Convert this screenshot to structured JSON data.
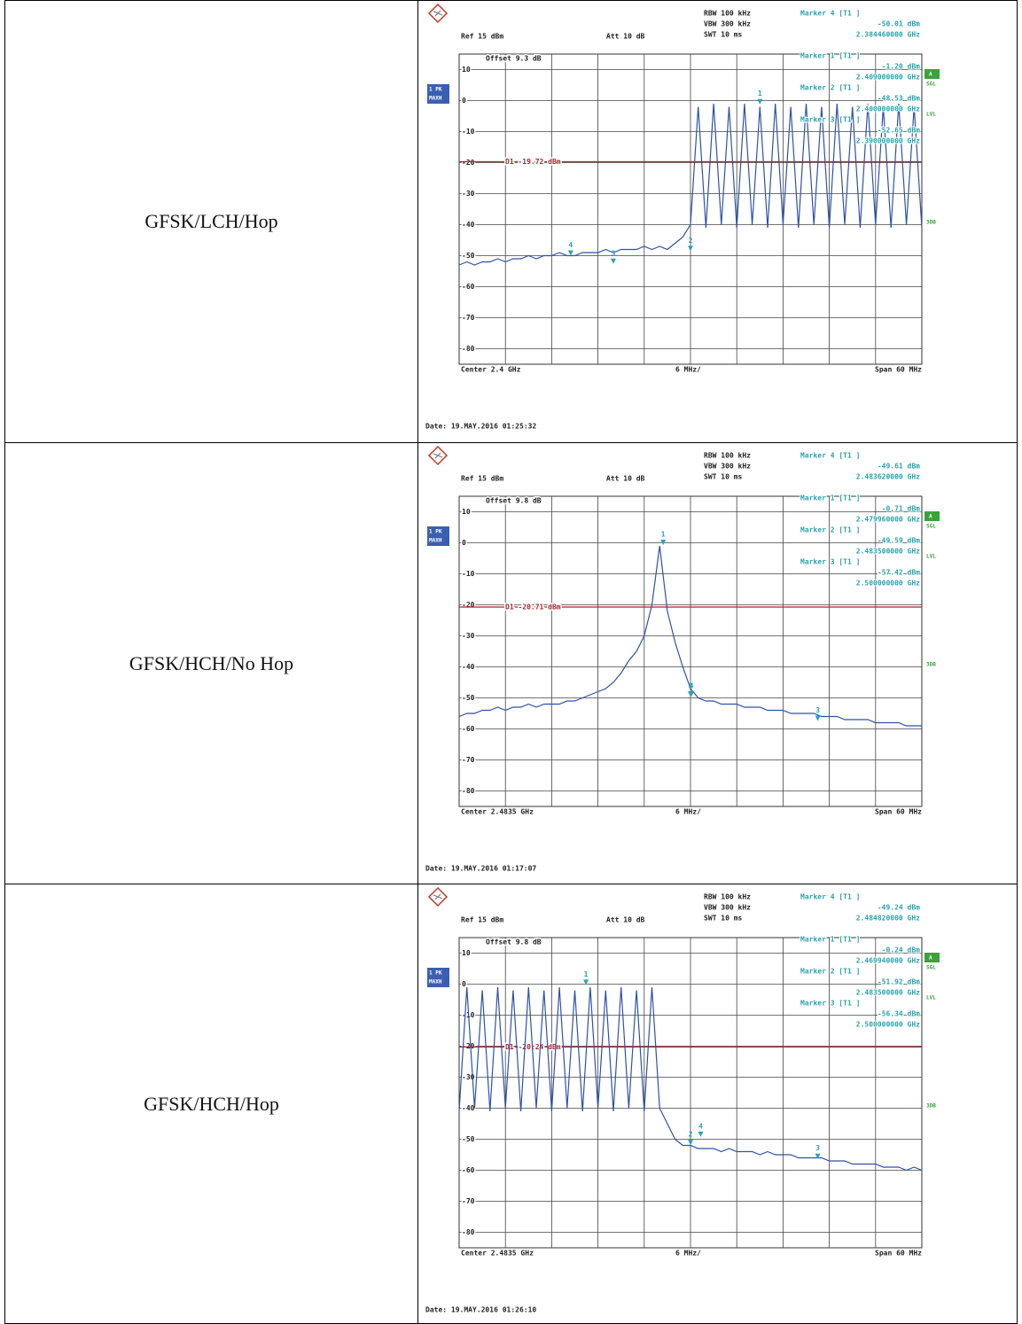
{
  "rows": [
    {
      "label": "GFSK/LCH/Hop",
      "plot": {
        "rbw": "RBW 100 kHz",
        "vbw": "VBW 300 kHz",
        "swt": "SWT 10 ms",
        "att": "Att 10 dB",
        "ref": {
          "value": 15,
          "label": "Ref 15 dBm"
        },
        "offset": "Offset 9.3 dB",
        "badge": [
          "1 PK",
          "MAXH"
        ],
        "side": [
          "A",
          "SGL",
          "LVL",
          "3DB"
        ],
        "markers": [
          {
            "id": "4",
            "label": "Marker 4 [T1 ]",
            "level": {
              "value": -50.01,
              "label": "-50.01 dBm"
            },
            "freq": {
              "value": 2.38446,
              "label": "2.384460000 GHz"
            }
          },
          {
            "id": "1",
            "label": "Marker 1 [T1 ]",
            "level": {
              "value": -1.2,
              "label": "-1.20 dBm"
            },
            "freq": {
              "value": 2.409,
              "label": "2.409000000 GHz"
            }
          },
          {
            "id": "2",
            "label": "Marker 2 [T1 ]",
            "level": {
              "value": -48.53,
              "label": "-48.53 dBm"
            },
            "freq": {
              "value": 2.4,
              "label": "2.400000000 GHz"
            }
          },
          {
            "id": "3",
            "label": "Marker 3 [T1 ]",
            "level": {
              "value": -52.65,
              "label": "-52.65 dBm"
            },
            "freq": {
              "value": 2.39,
              "label": "2.390000000 GHz"
            }
          }
        ],
        "d1": {
          "value": -19.72,
          "label": "D1 -19.72 dBm"
        },
        "yticks": [
          10,
          0,
          -10,
          -20,
          -30,
          -40,
          -50,
          -60,
          -70,
          -80
        ],
        "center": {
          "value": 2.4,
          "label": "Center 2.4 GHz"
        },
        "per_div": "6 MHz/",
        "span": {
          "value": 60,
          "label": "Span 60 MHz"
        },
        "trace": [
          -53,
          -52,
          -53,
          -52,
          -52,
          -51,
          -52,
          -51,
          -51,
          -50,
          -51,
          -50,
          -50,
          -49,
          -50,
          -50,
          -49,
          -49,
          -49,
          -48,
          -49,
          -48,
          -48,
          -48,
          -47,
          -48,
          -47,
          -48,
          -46,
          -44,
          -40,
          -2,
          -41,
          -1,
          -40,
          -2,
          -41,
          -1,
          -40,
          -2,
          -41,
          -1,
          -40,
          -2,
          -41,
          -1,
          -40,
          -2,
          -41,
          -1,
          -40,
          -2,
          -41,
          -1,
          -40,
          -2,
          -41,
          -1,
          -40,
          -2,
          -41
        ],
        "date": "Date: 19.MAY.2016 01:25:32"
      }
    },
    {
      "label": "GFSK/HCH/No Hop",
      "plot": {
        "rbw": "RBW 100 kHz",
        "vbw": "VBW 300 kHz",
        "swt": "SWT 10 ms",
        "att": "Att 10 dB",
        "ref": {
          "value": 15,
          "label": "Ref 15 dBm"
        },
        "offset": "Offset 9.8 dB",
        "badge": [
          "1 PK",
          "MAXH"
        ],
        "side": [
          "A",
          "SGL",
          "LVL",
          "3DB"
        ],
        "markers": [
          {
            "id": "4",
            "label": "Marker 4 [T1 ]",
            "level": {
              "value": -49.61,
              "label": "-49.61 dBm"
            },
            "freq": {
              "value": 2.48362,
              "label": "2.483620000 GHz"
            }
          },
          {
            "id": "1",
            "label": "Marker 1 [T1 ]",
            "level": {
              "value": -0.71,
              "label": "-0.71 dBm"
            },
            "freq": {
              "value": 2.47996,
              "label": "2.479960000 GHz"
            }
          },
          {
            "id": "2",
            "label": "Marker 2 [T1 ]",
            "level": {
              "value": -49.59,
              "label": "-49.59 dBm"
            },
            "freq": {
              "value": 2.4835,
              "label": "2.483500000 GHz"
            }
          },
          {
            "id": "3",
            "label": "Marker 3 [T1 ]",
            "level": {
              "value": -57.42,
              "label": "-57.42 dBm"
            },
            "freq": {
              "value": 2.5,
              "label": "2.500000000 GHz"
            }
          }
        ],
        "d1": {
          "value": -20.71,
          "label": "D1 -20.71 dBm"
        },
        "yticks": [
          10,
          0,
          -10,
          -20,
          -30,
          -40,
          -50,
          -60,
          -70,
          -80
        ],
        "center": {
          "value": 2.4835,
          "label": "Center 2.4835 GHz"
        },
        "per_div": "6 MHz/",
        "span": {
          "value": 60,
          "label": "Span 60 MHz"
        },
        "trace": [
          -56,
          -55,
          -55,
          -54,
          -54,
          -53,
          -54,
          -53,
          -53,
          -52,
          -53,
          -52,
          -52,
          -52,
          -51,
          -51,
          -50,
          -49,
          -48,
          -47,
          -45,
          -42,
          -38,
          -35,
          -30,
          -20,
          -1,
          -22,
          -32,
          -40,
          -47,
          -50,
          -51,
          -51,
          -52,
          -52,
          -52,
          -53,
          -53,
          -53,
          -54,
          -54,
          -54,
          -55,
          -55,
          -55,
          -55,
          -56,
          -56,
          -56,
          -57,
          -57,
          -57,
          -57,
          -58,
          -58,
          -58,
          -58,
          -59,
          -59,
          -59
        ],
        "date": "Date: 19.MAY.2016 01:17:07"
      }
    },
    {
      "label": "GFSK/HCH/Hop",
      "plot": {
        "rbw": "RBW 100 kHz",
        "vbw": "VBW 300 kHz",
        "swt": "SWT 10 ms",
        "att": "Att 10 dB",
        "ref": {
          "value": 15,
          "label": "Ref 15 dBm"
        },
        "offset": "Offset 9.8 dB",
        "badge": [
          "1 PK",
          "MAXH"
        ],
        "side": [
          "A",
          "SGL",
          "LVL",
          "3DB"
        ],
        "markers": [
          {
            "id": "4",
            "label": "Marker 4 [T1 ]",
            "level": {
              "value": -49.24,
              "label": "-49.24 dBm"
            },
            "freq": {
              "value": 2.48482,
              "label": "2.484820000 GHz"
            }
          },
          {
            "id": "1",
            "label": "Marker 1 [T1 ]",
            "level": {
              "value": -0.24,
              "label": "-0.24 dBm"
            },
            "freq": {
              "value": 2.46994,
              "label": "2.469940000 GHz"
            }
          },
          {
            "id": "2",
            "label": "Marker 2 [T1 ]",
            "level": {
              "value": -51.92,
              "label": "-51.92 dBm"
            },
            "freq": {
              "value": 2.4835,
              "label": "2.483500000 GHz"
            }
          },
          {
            "id": "3",
            "label": "Marker 3 [T1 ]",
            "level": {
              "value": -56.34,
              "label": "-56.34 dBm"
            },
            "freq": {
              "value": 2.5,
              "label": "2.500000000 GHz"
            }
          }
        ],
        "d1": {
          "value": -20.24,
          "label": "D1 -20.24 dBm"
        },
        "yticks": [
          10,
          0,
          -10,
          -20,
          -30,
          -40,
          -50,
          -60,
          -70,
          -80
        ],
        "center": {
          "value": 2.4835,
          "label": "Center 2.4835 GHz"
        },
        "per_div": "6 MHz/",
        "span": {
          "value": 60,
          "label": "Span 60 MHz"
        },
        "trace": [
          -41,
          -1,
          -40,
          -2,
          -41,
          -1,
          -40,
          -2,
          -41,
          -1,
          -40,
          -2,
          -41,
          -1,
          -40,
          -2,
          -41,
          -1,
          -40,
          -2,
          -41,
          -1,
          -40,
          -2,
          -41,
          -1,
          -40,
          -45,
          -50,
          -52,
          -52,
          -53,
          -53,
          -53,
          -54,
          -53,
          -54,
          -54,
          -54,
          -55,
          -54,
          -55,
          -55,
          -55,
          -56,
          -56,
          -56,
          -56,
          -57,
          -57,
          -57,
          -58,
          -58,
          -58,
          -58,
          -59,
          -59,
          -59,
          -60,
          -59,
          -60
        ],
        "date": "Date: 19.MAY.2016 01:26:10"
      }
    }
  ]
}
